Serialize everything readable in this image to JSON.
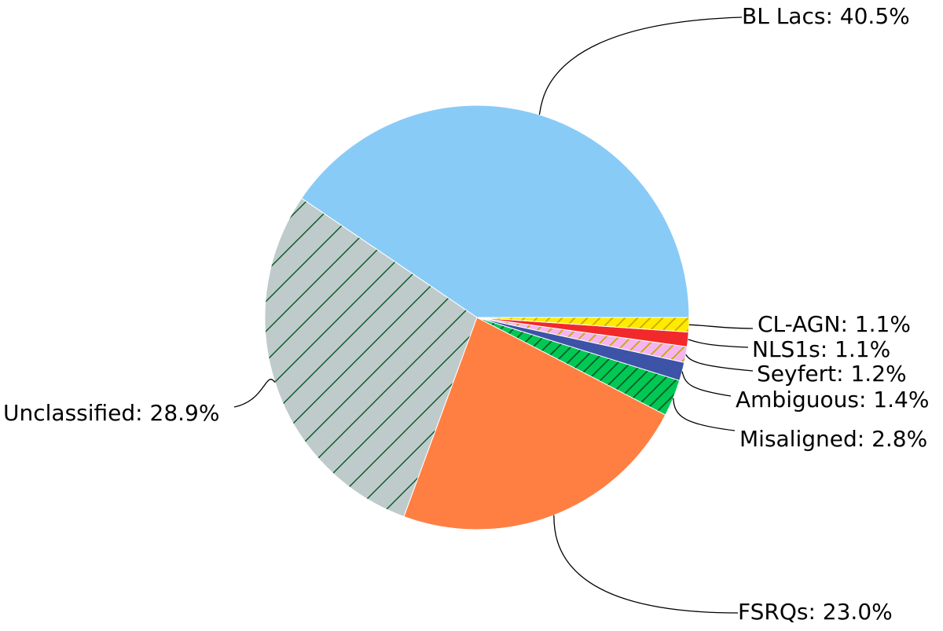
{
  "chart_data": {
    "type": "pie",
    "title": "",
    "start_angle_deg": 0,
    "direction": "counterclockwise",
    "slices": [
      {
        "name": "BL Lacs",
        "value": 40.5,
        "label": "BL Lacs: 40.5%",
        "color": "#89cbf7",
        "hatch": "none"
      },
      {
        "name": "Unclassified",
        "value": 28.9,
        "label": "Unclassified: 28.9%",
        "color": "#bfcbcb",
        "hatch": "diagonal"
      },
      {
        "name": "FSRQs",
        "value": 23.0,
        "label": "FSRQs: 23.0%",
        "color": "#ff7f42",
        "hatch": "none"
      },
      {
        "name": "Misaligned",
        "value": 2.8,
        "label": "Misaligned: 2.8%",
        "color": "#00c853",
        "hatch": "diagonal"
      },
      {
        "name": "Ambiguous",
        "value": 1.4,
        "label": "Ambiguous: 1.4%",
        "color": "#3c53a8",
        "hatch": "none"
      },
      {
        "name": "Seyfert",
        "value": 1.2,
        "label": "Seyfert: 1.2%",
        "color": "#f4b4f0",
        "hatch": "diagonal"
      },
      {
        "name": "NLS1s",
        "value": 1.1,
        "label": "NLS1s: 1.1%",
        "color": "#f2292b",
        "hatch": "none"
      },
      {
        "name": "CL-AGN",
        "value": 1.1,
        "label": "CL-AGN: 1.1%",
        "color": "#ffea00",
        "hatch": "diagonal"
      }
    ]
  }
}
